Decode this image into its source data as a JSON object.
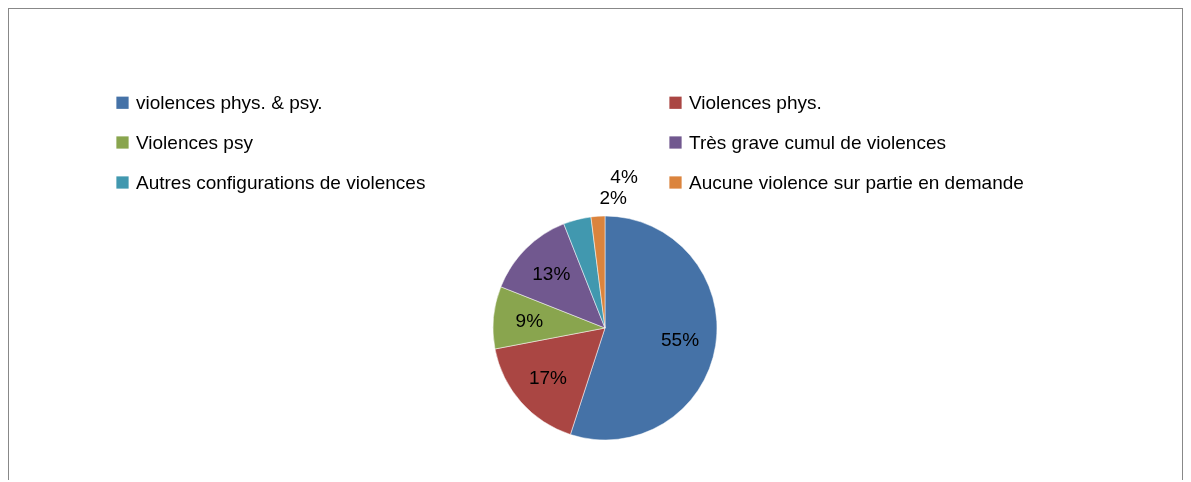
{
  "chart_data": {
    "type": "pie",
    "categories": [
      "violences phys. & psy.",
      "Violences phys.",
      "Violences psy",
      "Très grave cumul de violences",
      "Autres configurations de violences",
      "Aucune violence sur partie en demande"
    ],
    "values": [
      55,
      17,
      9,
      13,
      4,
      2
    ],
    "colors": [
      "#4572a7",
      "#aa4643",
      "#89a54e",
      "#71588f",
      "#4198af",
      "#db843d"
    ],
    "value_labels": [
      "55%",
      "17%",
      "9%",
      "13%",
      "4%",
      "2%"
    ],
    "legend": "top"
  }
}
